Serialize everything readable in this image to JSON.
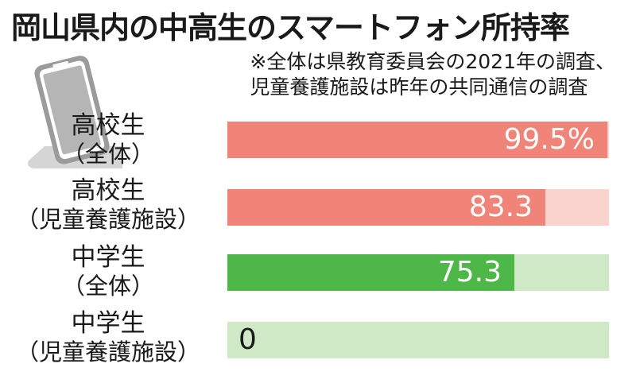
{
  "title": "岡山県内の中高生のスマートフォン所持率",
  "note": {
    "line1": "※全体は県教育委員会の2021年の調査、",
    "line2": "児童養護施設は昨年の共同通信の調査"
  },
  "icons": {
    "phone": "smartphone-icon"
  },
  "colors": {
    "high_fill": "#f08478",
    "high_bg": "#fad3cf",
    "middle_fill": "#4db848",
    "middle_bg": "#cfe8c6",
    "value_light": "#ffffff",
    "value_dark": "#1a1a1a"
  },
  "chart_data": {
    "type": "bar",
    "orientation": "horizontal",
    "title": "岡山県内の中高生のスマートフォン所持率",
    "xlim": [
      0,
      100
    ],
    "unit": "%",
    "categories": [
      {
        "line1": "高校生",
        "line2": "（全体）"
      },
      {
        "line1": "高校生",
        "line2": "（児童養護施設）"
      },
      {
        "line1": "中学生",
        "line2": "（全体）"
      },
      {
        "line1": "中学生",
        "line2": "（児童養護施設）"
      }
    ],
    "values": [
      99.5,
      83.3,
      75.3,
      0
    ],
    "value_labels": [
      "99.5%",
      "83.3",
      "75.3",
      "0"
    ],
    "groups": [
      "high",
      "high",
      "middle",
      "middle"
    ]
  }
}
